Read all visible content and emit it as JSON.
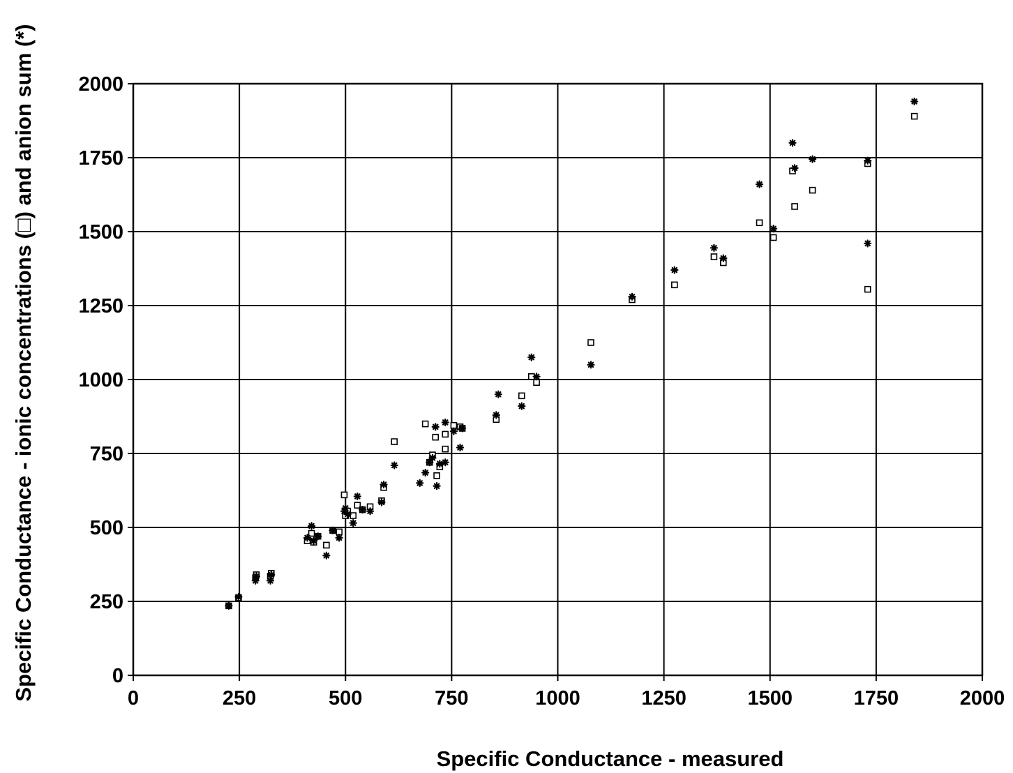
{
  "chart_data": {
    "type": "scatter",
    "title": "",
    "xlabel": "Specific Conductance - measured",
    "ylabel": "Specific Conductance - ionic concentrations (□) and anion sum (*)",
    "xlim": [
      0,
      2000
    ],
    "ylim": [
      0,
      2000
    ],
    "x_ticks": [
      "0",
      "250",
      "500",
      "750",
      "1000",
      "1250",
      "1500",
      "1750",
      "2000"
    ],
    "y_ticks": [
      "0",
      "250",
      "500",
      "750",
      "1000",
      "1250",
      "1500",
      "1750",
      "2000"
    ],
    "grid": true,
    "legend": "none",
    "series": [
      {
        "marker": "square",
        "points": [
          [
            225,
            235
          ],
          [
            248,
            262
          ],
          [
            288,
            330
          ],
          [
            290,
            340
          ],
          [
            323,
            335
          ],
          [
            325,
            345
          ],
          [
            410,
            455
          ],
          [
            420,
            480
          ],
          [
            425,
            450
          ],
          [
            435,
            470
          ],
          [
            455,
            440
          ],
          [
            470,
            490
          ],
          [
            485,
            485
          ],
          [
            497,
            610
          ],
          [
            500,
            540
          ],
          [
            505,
            555
          ],
          [
            518,
            540
          ],
          [
            528,
            575
          ],
          [
            540,
            560
          ],
          [
            558,
            570
          ],
          [
            585,
            590
          ],
          [
            590,
            635
          ],
          [
            615,
            790
          ],
          [
            688,
            850
          ],
          [
            698,
            720
          ],
          [
            705,
            745
          ],
          [
            712,
            805
          ],
          [
            715,
            675
          ],
          [
            722,
            705
          ],
          [
            735,
            765
          ],
          [
            735,
            815
          ],
          [
            755,
            845
          ],
          [
            770,
            840
          ],
          [
            775,
            835
          ],
          [
            855,
            865
          ],
          [
            915,
            945
          ],
          [
            938,
            1010
          ],
          [
            950,
            990
          ],
          [
            1078,
            1125
          ],
          [
            1175,
            1270
          ],
          [
            1275,
            1320
          ],
          [
            1368,
            1415
          ],
          [
            1390,
            1395
          ],
          [
            1475,
            1530
          ],
          [
            1508,
            1480
          ],
          [
            1553,
            1705
          ],
          [
            1558,
            1585
          ],
          [
            1600,
            1640
          ],
          [
            1730,
            1730
          ],
          [
            1730,
            1305
          ],
          [
            1840,
            1890
          ]
        ]
      },
      {
        "marker": "star",
        "points": [
          [
            225,
            235
          ],
          [
            248,
            265
          ],
          [
            288,
            320
          ],
          [
            290,
            335
          ],
          [
            323,
            320
          ],
          [
            325,
            340
          ],
          [
            410,
            465
          ],
          [
            420,
            505
          ],
          [
            425,
            455
          ],
          [
            435,
            470
          ],
          [
            455,
            405
          ],
          [
            470,
            490
          ],
          [
            485,
            465
          ],
          [
            497,
            555
          ],
          [
            500,
            565
          ],
          [
            505,
            545
          ],
          [
            518,
            515
          ],
          [
            528,
            605
          ],
          [
            540,
            560
          ],
          [
            558,
            555
          ],
          [
            585,
            585
          ],
          [
            590,
            645
          ],
          [
            615,
            710
          ],
          [
            675,
            650
          ],
          [
            688,
            685
          ],
          [
            698,
            720
          ],
          [
            705,
            735
          ],
          [
            712,
            840
          ],
          [
            715,
            640
          ],
          [
            722,
            715
          ],
          [
            735,
            855
          ],
          [
            735,
            720
          ],
          [
            755,
            825
          ],
          [
            770,
            770
          ],
          [
            775,
            835
          ],
          [
            855,
            880
          ],
          [
            860,
            950
          ],
          [
            915,
            910
          ],
          [
            938,
            1075
          ],
          [
            950,
            1010
          ],
          [
            1078,
            1050
          ],
          [
            1175,
            1280
          ],
          [
            1275,
            1370
          ],
          [
            1368,
            1445
          ],
          [
            1390,
            1410
          ],
          [
            1475,
            1660
          ],
          [
            1508,
            1510
          ],
          [
            1553,
            1800
          ],
          [
            1558,
            1715
          ],
          [
            1600,
            1745
          ],
          [
            1730,
            1740
          ],
          [
            1730,
            1460
          ],
          [
            1840,
            1940
          ]
        ]
      }
    ]
  }
}
